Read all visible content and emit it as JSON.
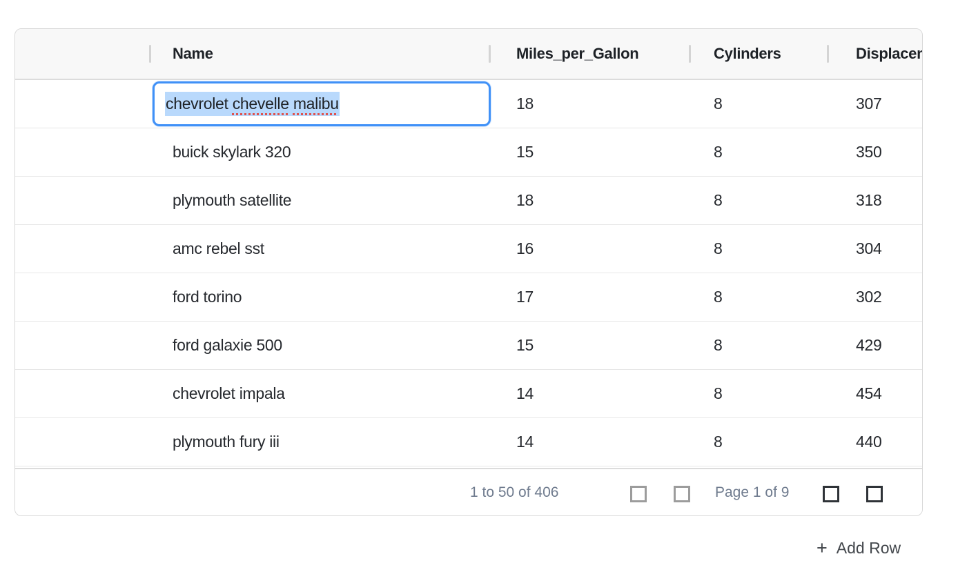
{
  "grid": {
    "columns": [
      {
        "key": "rowhandle",
        "label": ""
      },
      {
        "key": "name",
        "label": "Name"
      },
      {
        "key": "mpg",
        "label": "Miles_per_Gallon"
      },
      {
        "key": "cylinders",
        "label": "Cylinders"
      },
      {
        "key": "displacement",
        "label": "Displacement"
      }
    ],
    "rows": [
      {
        "name": "chevrolet chevelle malibu",
        "mpg": "18",
        "cylinders": "8",
        "displacement": "307",
        "editing": true
      },
      {
        "name": "buick skylark 320",
        "mpg": "15",
        "cylinders": "8",
        "displacement": "350"
      },
      {
        "name": "plymouth satellite",
        "mpg": "18",
        "cylinders": "8",
        "displacement": "318"
      },
      {
        "name": "amc rebel sst",
        "mpg": "16",
        "cylinders": "8",
        "displacement": "304"
      },
      {
        "name": "ford torino",
        "mpg": "17",
        "cylinders": "8",
        "displacement": "302"
      },
      {
        "name": "ford galaxie 500",
        "mpg": "15",
        "cylinders": "8",
        "displacement": "429"
      },
      {
        "name": "chevrolet impala",
        "mpg": "14",
        "cylinders": "8",
        "displacement": "454"
      },
      {
        "name": "plymouth fury iii",
        "mpg": "14",
        "cylinders": "8",
        "displacement": "440"
      }
    ],
    "editor": {
      "value": "chevrolet chevelle malibu",
      "tokens": [
        "chevrolet",
        "chevelle",
        "malibu"
      ],
      "misspelled": [
        "chevelle",
        "malibu"
      ],
      "text_selected": true
    }
  },
  "pagination": {
    "row_summary": "1 to 50 of 406",
    "page_summary": "Page 1 of 9",
    "buttons": [
      {
        "name": "first-page",
        "icon": "first-page-icon",
        "enabled": false
      },
      {
        "name": "previous-page",
        "icon": "previous-page-icon",
        "enabled": false
      },
      {
        "name": "next-page",
        "icon": "next-page-icon",
        "enabled": true
      },
      {
        "name": "last-page",
        "icon": "last-page-icon",
        "enabled": true
      }
    ]
  },
  "footer": {
    "add_row_icon": "+",
    "add_row_label": "Add Row"
  },
  "colors": {
    "editor_border": "#4091f7",
    "text_selection": "#b9d9fc",
    "spellcheck_underline": "#e0524e",
    "header_background": "#f8f8f8",
    "pagination_text": "#6f7b8e",
    "disabled_icon": "#9c9c9c",
    "enabled_icon": "#2f3338"
  }
}
